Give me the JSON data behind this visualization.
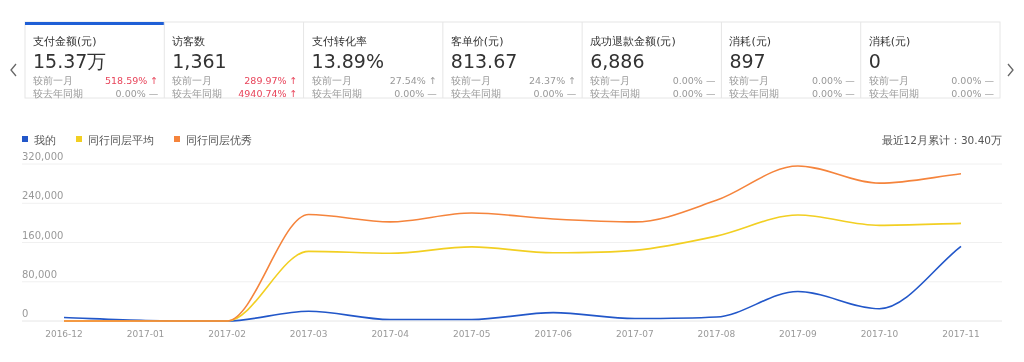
{
  "chart_data": [
    {
      "type": "other",
      "annotations": [
        "支付金额(元)",
        "15.37万",
        "较前一月",
        "518.59% ↑",
        "较去年同期",
        "0.00% —",
        "访客数",
        "1,361",
        "较前一月",
        "289.97% ↑",
        "较去年同期",
        "4940.74% ↑",
        "支付转化率",
        "13.89%",
        "较前一月",
        "27.54% ↑",
        "较去年同期",
        "0.00% —",
        "客单价(元)",
        "813.67",
        "较前一月",
        "24.37% ↑",
        "较去年同期",
        "0.00% —",
        "成功退款金额(元)",
        "6,886",
        "较前一月",
        "0.00% —",
        "较去年同期",
        "0.00% —",
        "消耗(元)",
        "897",
        "较前一月",
        "0.00% —",
        "较去年同期",
        "0.00% —",
        "消耗(元)",
        "0",
        "较前一月",
        "0.00% —",
        "较去年同期",
        "0.00% —"
      ],
      "colors": [
        "#333333",
        "#333333",
        "#999999",
        "#e8445a",
        "#999999",
        "#999999",
        "#333333",
        "#333333",
        "#999999",
        "#e8445a",
        "#999999",
        "#e8445a",
        "#333333",
        "#333333",
        "#999999",
        "#999999",
        "#999999",
        "#999999",
        "#333333",
        "#333333",
        "#999999",
        "#999999",
        "#999999",
        "#999999",
        "#333333",
        "#333333",
        "#999999",
        "#999999",
        "#999999",
        "#999999",
        "#333333",
        "#333333",
        "#999999",
        "#999999",
        "#999999",
        "#999999",
        "#333333",
        "#333333",
        "#999999",
        "#999999",
        "#999999",
        "#999999"
      ]
    },
    {
      "type": "line",
      "categories": [
        "2016-12",
        "2017-01",
        "2017-02",
        "2017-03",
        "2017-04",
        "2017-05",
        "2017-06",
        "2017-07",
        "2017-08",
        "2017-09",
        "2017-10",
        "2017-11"
      ],
      "series": [
        {
          "name": "我的",
          "color": "#2257c9",
          "values": [
            7000,
            1000,
            0,
            20000,
            3000,
            3000,
            17000,
            5000,
            8000,
            60000,
            25000,
            152000
          ]
        },
        {
          "name": "同行同层平均",
          "color": "#f2cf22",
          "values": [
            0,
            0,
            0,
            142000,
            138000,
            151000,
            139000,
            144000,
            173000,
            216000,
            195000,
            199000
          ]
        },
        {
          "name": "同行同层优秀",
          "color": "#f5843c",
          "values": [
            0,
            0,
            0,
            217000,
            202000,
            220000,
            208000,
            202000,
            246000,
            316000,
            281000,
            300000
          ]
        }
      ],
      "ylim": [
        0,
        320000
      ],
      "yticks": [
        0,
        {
          "value": 80000,
          "label": "80,000"
        },
        {
          "value": 160000,
          "label": "160,000"
        },
        {
          "value": 240000,
          "label": "240,000"
        },
        {
          "value": 320000,
          "label": "320,000"
        }
      ],
      "grid": "y",
      "legend": "top left",
      "marker": "none",
      "line_style": "solid",
      "annotations": [
        "最近12月累计：30.40万"
      ]
    }
  ]
}
